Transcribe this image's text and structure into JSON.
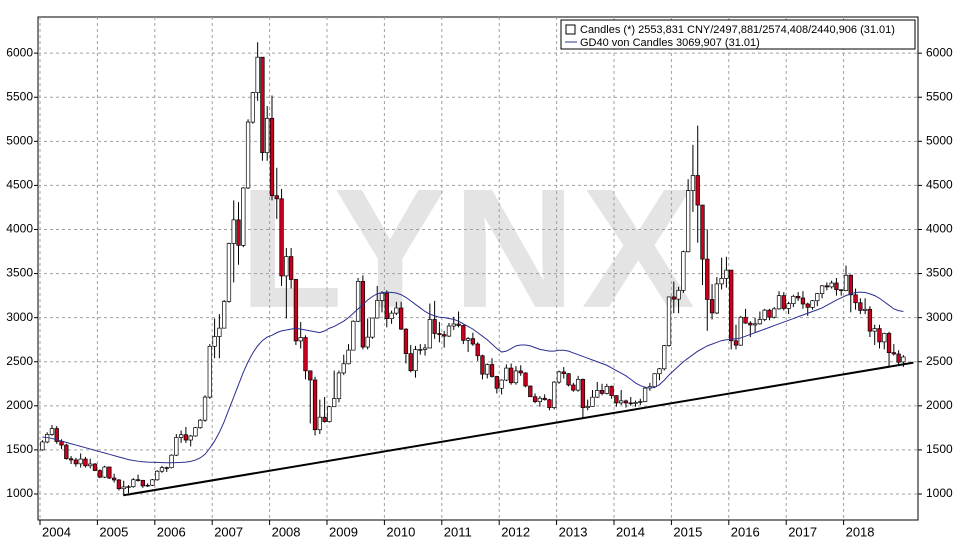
{
  "chart_data": {
    "type": "candlestick",
    "watermark": "LYNX",
    "grid": true,
    "ylim": [
      705,
      6410
    ],
    "yticks": [
      1000,
      1500,
      2000,
      2500,
      3000,
      3500,
      4000,
      4500,
      5000,
      5500,
      6000
    ],
    "categories": [
      "2004",
      null,
      null,
      null,
      null,
      null,
      null,
      null,
      null,
      null,
      null,
      null,
      "2005",
      null,
      null,
      null,
      null,
      null,
      null,
      null,
      null,
      null,
      null,
      null,
      "2006",
      null,
      null,
      null,
      null,
      null,
      null,
      null,
      null,
      null,
      null,
      null,
      "2007",
      null,
      null,
      null,
      null,
      null,
      null,
      null,
      null,
      null,
      null,
      null,
      "2008",
      null,
      null,
      null,
      null,
      null,
      null,
      null,
      null,
      null,
      null,
      null,
      "2009",
      null,
      null,
      null,
      null,
      null,
      null,
      null,
      null,
      null,
      null,
      null,
      "2010",
      null,
      null,
      null,
      null,
      null,
      null,
      null,
      null,
      null,
      null,
      null,
      "2011",
      null,
      null,
      null,
      null,
      null,
      null,
      null,
      null,
      null,
      null,
      null,
      "2012",
      null,
      null,
      null,
      null,
      null,
      null,
      null,
      null,
      null,
      null,
      null,
      "2013",
      null,
      null,
      null,
      null,
      null,
      null,
      null,
      null,
      null,
      null,
      null,
      "2014",
      null,
      null,
      null,
      null,
      null,
      null,
      null,
      null,
      null,
      null,
      null,
      "2015",
      null,
      null,
      null,
      null,
      null,
      null,
      null,
      null,
      null,
      null,
      null,
      "2016",
      null,
      null,
      null,
      null,
      null,
      null,
      null,
      null,
      null,
      null,
      null,
      "2017",
      null,
      null,
      null,
      null,
      null,
      null,
      null,
      null,
      null,
      null,
      null,
      "2018",
      null,
      null,
      null,
      null,
      null,
      null,
      null,
      null,
      null,
      null,
      null,
      null
    ],
    "candles": {
      "name": "Candles (*) 2553,831 CNY/2497,881/2574,408/2440,906 (31.01)",
      "up_color": "#ffffff",
      "down_color": "#c8001e",
      "open": [
        1500,
        1590,
        1675,
        1742,
        1595,
        1555,
        1400,
        1386,
        1342,
        1396,
        1320,
        1340,
        1266,
        1191,
        1306,
        1181,
        1159,
        1060,
        1080,
        1083,
        1162,
        1155,
        1092,
        1099,
        1161,
        1258,
        1299,
        1298,
        1440,
        1641,
        1672,
        1612,
        1658,
        1752,
        1837,
        2099,
        2675,
        2786,
        2881,
        3183,
        3841,
        4109,
        3820,
        4471,
        5218,
        5552,
        5954,
        4871,
        5261,
        4383,
        4348,
        3473,
        3693,
        3433,
        2736,
        2775,
        2397,
        2293,
        1729,
        1871,
        1821,
        1990,
        2082,
        2373,
        2477,
        2632,
        2959,
        3412,
        2667,
        2779,
        2996,
        3195,
        3277,
        2989,
        3051,
        3110,
        2870,
        2592,
        2398,
        2638,
        2639,
        2656,
        2979,
        2820,
        2808,
        2791,
        2905,
        2928,
        2911,
        2743,
        2762,
        2701,
        2568,
        2359,
        2468,
        2333,
        2199,
        2292,
        2428,
        2262,
        2396,
        2373,
        2225,
        2103,
        2047,
        2086,
        2069,
        1980,
        2269,
        2385,
        2365,
        2236,
        2178,
        2300,
        1979,
        1993,
        2098,
        2175,
        2141,
        2220,
        2116,
        2033,
        2056,
        2033,
        2026,
        2039,
        2048,
        2201,
        2217,
        2364,
        2420,
        2683,
        3235,
        3210,
        3310,
        3748,
        4441,
        4612,
        4277,
        3664,
        3206,
        3053,
        3383,
        3445,
        3539,
        2738,
        2688,
        3004,
        2938,
        2917,
        2930,
        2979,
        3085,
        3005,
        3100,
        3250,
        3104,
        3159,
        3242,
        3223,
        3155,
        3117,
        3192,
        3273,
        3361,
        3349,
        3393,
        3317,
        3307,
        3481,
        3259,
        3169,
        3082,
        3095,
        2847,
        2876,
        2725,
        2821,
        2603,
        2588,
        2497.881
      ],
      "high": [
        1610,
        1700,
        1783,
        1770,
        1620,
        1570,
        1430,
        1410,
        1460,
        1420,
        1400,
        1350,
        1280,
        1320,
        1310,
        1230,
        1170,
        1150,
        1100,
        1180,
        1220,
        1160,
        1120,
        1170,
        1270,
        1320,
        1310,
        1450,
        1680,
        1720,
        1760,
        1670,
        1760,
        1850,
        2120,
        2700,
        2990,
        3040,
        3200,
        3850,
        4330,
        4310,
        4480,
        5250,
        5560,
        6124,
        5950,
        5400,
        5520,
        4700,
        4460,
        3790,
        3790,
        3440,
        2950,
        2800,
        2400,
        2330,
        2070,
        2100,
        2000,
        2400,
        2400,
        2580,
        2700,
        2970,
        3450,
        3480,
        2990,
        3000,
        3360,
        3300,
        3310,
        3080,
        3180,
        3180,
        2880,
        2690,
        2680,
        2700,
        2700,
        3160,
        3190,
        2950,
        2850,
        2940,
        3010,
        3070,
        2920,
        2780,
        2830,
        2720,
        2580,
        2480,
        2540,
        2340,
        2300,
        2470,
        2480,
        2450,
        2460,
        2380,
        2230,
        2140,
        2110,
        2130,
        2080,
        2280,
        2400,
        2440,
        2370,
        2260,
        2340,
        2310,
        2070,
        2180,
        2270,
        2250,
        2250,
        2230,
        2120,
        2180,
        2070,
        2100,
        2060,
        2080,
        2220,
        2260,
        2370,
        2430,
        2690,
        3240,
        3410,
        3350,
        3760,
        4570,
        4960,
        5178,
        4280,
        4000,
        3380,
        3460,
        3680,
        3690,
        3540,
        2920,
        3020,
        3100,
        2960,
        3000,
        3070,
        3100,
        3100,
        3120,
        3300,
        3290,
        3180,
        3260,
        3290,
        3300,
        3170,
        3200,
        3280,
        3370,
        3400,
        3420,
        3450,
        3320,
        3590,
        3490,
        3330,
        3220,
        3220,
        3130,
        2920,
        2920,
        2830,
        2840,
        2700,
        2630,
        2574.408
      ],
      "low": [
        1490,
        1575,
        1660,
        1570,
        1510,
        1390,
        1340,
        1310,
        1300,
        1300,
        1290,
        1260,
        1180,
        1180,
        1170,
        1130,
        1040,
        998,
        1010,
        1070,
        1140,
        1070,
        1080,
        1090,
        1150,
        1240,
        1250,
        1290,
        1430,
        1580,
        1580,
        1540,
        1650,
        1740,
        1820,
        2080,
        2540,
        2540,
        2880,
        3170,
        3400,
        3600,
        3800,
        4460,
        5200,
        5460,
        4780,
        4780,
        4330,
        4120,
        3360,
        2990,
        3330,
        2690,
        2650,
        2300,
        1800,
        1664,
        1680,
        1810,
        1810,
        1990,
        2040,
        2350,
        2470,
        2630,
        2950,
        2640,
        2640,
        2760,
        2990,
        3060,
        2890,
        2930,
        3030,
        2860,
        2480,
        2380,
        2320,
        2580,
        2570,
        2650,
        2760,
        2720,
        2660,
        2780,
        2860,
        2890,
        2700,
        2610,
        2680,
        2510,
        2300,
        2310,
        2320,
        2140,
        2130,
        2280,
        2240,
        2240,
        2340,
        2210,
        2100,
        2030,
        1990,
        2060,
        1950,
        1960,
        2250,
        2310,
        2220,
        2160,
        2160,
        1850,
        1950,
        1990,
        2090,
        2120,
        2130,
        2080,
        1990,
        2010,
        1980,
        2000,
        1990,
        2010,
        2040,
        2170,
        2200,
        2290,
        2400,
        2670,
        3050,
        3050,
        3280,
        3740,
        4200,
        3850,
        3370,
        2850,
        2980,
        3040,
        3320,
        3340,
        2640,
        2640,
        2680,
        2930,
        2780,
        2830,
        2920,
        2960,
        2970,
        2990,
        3090,
        3080,
        3040,
        3120,
        3190,
        3100,
        3020,
        3090,
        3130,
        3220,
        3310,
        3330,
        3250,
        3250,
        3300,
        3060,
        3090,
        3040,
        3040,
        2780,
        2690,
        2650,
        2640,
        2450,
        2570,
        2460,
        2440.906
      ],
      "close": [
        1590,
        1675,
        1742,
        1595,
        1555,
        1400,
        1386,
        1342,
        1396,
        1320,
        1340,
        1266,
        1191,
        1306,
        1181,
        1159,
        1060,
        1080,
        1083,
        1162,
        1155,
        1092,
        1099,
        1161,
        1258,
        1299,
        1298,
        1440,
        1641,
        1672,
        1612,
        1658,
        1752,
        1837,
        2099,
        2675,
        2786,
        2881,
        3183,
        3841,
        4109,
        3820,
        4471,
        5218,
        5552,
        5954,
        4871,
        5261,
        4383,
        4348,
        3473,
        3693,
        3433,
        2736,
        2775,
        2397,
        2293,
        1729,
        1871,
        1821,
        1990,
        2082,
        2373,
        2477,
        2632,
        2959,
        3412,
        2667,
        2779,
        2996,
        3195,
        3277,
        2989,
        3051,
        3110,
        2870,
        2592,
        2398,
        2638,
        2639,
        2656,
        2979,
        2820,
        2808,
        2791,
        2905,
        2928,
        2911,
        2743,
        2762,
        2701,
        2568,
        2359,
        2468,
        2333,
        2199,
        2292,
        2428,
        2262,
        2396,
        2373,
        2225,
        2103,
        2047,
        2086,
        2069,
        1980,
        2269,
        2385,
        2365,
        2236,
        2178,
        2300,
        1979,
        1993,
        2098,
        2175,
        2141,
        2220,
        2116,
        2033,
        2056,
        2033,
        2026,
        2039,
        2048,
        2201,
        2217,
        2364,
        2420,
        2683,
        3235,
        3210,
        3310,
        3748,
        4441,
        4612,
        4277,
        3664,
        3206,
        3053,
        3383,
        3445,
        3539,
        2738,
        2688,
        3004,
        2938,
        2917,
        2930,
        2979,
        3085,
        3005,
        3100,
        3250,
        3104,
        3159,
        3242,
        3223,
        3155,
        3117,
        3192,
        3273,
        3361,
        3349,
        3393,
        3317,
        3307,
        3481,
        3259,
        3169,
        3082,
        3095,
        2847,
        2876,
        2725,
        2821,
        2603,
        2588,
        2494,
        2553.831
      ]
    },
    "series": [
      {
        "name": "GD40 von Candles 3069,907 (31.01)",
        "color": "#2b2f8f",
        "values": [
          1646,
          1640,
          1630,
          1615,
          1600,
          1585,
          1570,
          1555,
          1540,
          1525,
          1510,
          1495,
          1480,
          1465,
          1450,
          1435,
          1420,
          1405,
          1390,
          1380,
          1372,
          1366,
          1362,
          1360,
          1358,
          1356,
          1355,
          1355,
          1356,
          1358,
          1362,
          1370,
          1385,
          1410,
          1450,
          1520,
          1600,
          1700,
          1820,
          1960,
          2100,
          2240,
          2380,
          2500,
          2600,
          2680,
          2740,
          2780,
          2800,
          2830,
          2850,
          2860,
          2870,
          2880,
          2870,
          2860,
          2850,
          2840,
          2830,
          2850,
          2880,
          2900,
          2930,
          2960,
          3000,
          3050,
          3100,
          3150,
          3200,
          3240,
          3270,
          3285,
          3290,
          3285,
          3280,
          3260,
          3230,
          3190,
          3150,
          3110,
          3070,
          3040,
          3020,
          3005,
          3000,
          2990,
          2980,
          2960,
          2930,
          2900,
          2870,
          2830,
          2790,
          2750,
          2700,
          2650,
          2610,
          2620,
          2650,
          2680,
          2690,
          2690,
          2680,
          2660,
          2640,
          2630,
          2620,
          2620,
          2630,
          2630,
          2620,
          2600,
          2580,
          2560,
          2540,
          2520,
          2500,
          2480,
          2460,
          2430,
          2400,
          2370,
          2340,
          2300,
          2260,
          2230,
          2210,
          2200,
          2210,
          2240,
          2290,
          2350,
          2400,
          2450,
          2500,
          2540,
          2580,
          2620,
          2650,
          2680,
          2700,
          2720,
          2740,
          2750,
          2755,
          2760,
          2770,
          2790,
          2810,
          2830,
          2850,
          2870,
          2890,
          2910,
          2930,
          2950,
          2970,
          2990,
          3010,
          3030,
          3050,
          3070,
          3090,
          3110,
          3140,
          3170,
          3200,
          3225,
          3250,
          3270,
          3285,
          3290,
          3285,
          3270,
          3250,
          3220,
          3180,
          3140,
          3100,
          3080,
          3069.907
        ]
      }
    ],
    "trend_line": {
      "color": "#000000",
      "x": [
        17.4,
        182.6
      ],
      "values": [
        985,
        2490
      ]
    }
  }
}
